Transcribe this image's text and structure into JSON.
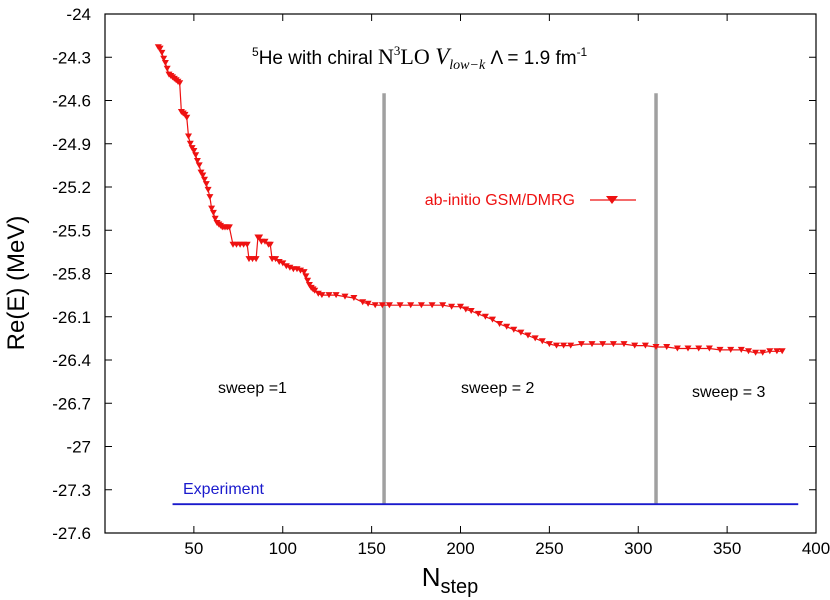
{
  "chart_data": {
    "type": "line",
    "title": {
      "superscript": "5",
      "lead": "He with chiral ",
      "n3lo_base": "N",
      "n3lo_sup": "3",
      "n3lo_tail": "LO ",
      "vlowk_base": "V",
      "vlowk_sub": "low−k",
      "lambda_text": " Λ = 1.9 fm",
      "lambda_sup": "-1"
    },
    "xlabel": {
      "base": "N",
      "sub": "step"
    },
    "ylabel": "Re(E)  (MeV)",
    "xlim": [
      0,
      400
    ],
    "ylim": [
      -27.6,
      -24.0
    ],
    "x_ticks": [
      50,
      100,
      150,
      200,
      250,
      300,
      350,
      400
    ],
    "y_ticks": [
      -24,
      -24.3,
      -24.6,
      -24.9,
      -25.2,
      -25.5,
      -25.8,
      -26.1,
      -26.4,
      -26.7,
      -27,
      -27.3,
      -27.6
    ],
    "y_tick_labels": [
      "-24",
      "-24.3",
      "-24.6",
      "-24.9",
      "-25.2",
      "-25.5",
      "-25.8",
      "-26.1",
      "-26.4",
      "-26.7",
      "-27",
      "-27.3",
      "-27.6"
    ],
    "grid": false,
    "series": [
      {
        "name": "ab-initio GSM/DMRG",
        "color": "#ee1111",
        "marker": "triangle-down",
        "points": [
          [
            30,
            -24.23
          ],
          [
            31,
            -24.24
          ],
          [
            32,
            -24.27
          ],
          [
            33,
            -24.31
          ],
          [
            34,
            -24.34
          ],
          [
            35,
            -24.38
          ],
          [
            36,
            -24.42
          ],
          [
            37,
            -24.43
          ],
          [
            38,
            -24.44
          ],
          [
            39,
            -24.45
          ],
          [
            40,
            -24.46
          ],
          [
            41,
            -24.47
          ],
          [
            42,
            -24.48
          ],
          [
            43,
            -24.68
          ],
          [
            44,
            -24.69
          ],
          [
            45,
            -24.7
          ],
          [
            46,
            -24.72
          ],
          [
            47,
            -24.85
          ],
          [
            48,
            -24.9
          ],
          [
            49,
            -24.93
          ],
          [
            50,
            -24.95
          ],
          [
            51,
            -24.98
          ],
          [
            52,
            -25.02
          ],
          [
            53,
            -25.05
          ],
          [
            54,
            -25.1
          ],
          [
            55,
            -25.12
          ],
          [
            56,
            -25.15
          ],
          [
            57,
            -25.18
          ],
          [
            58,
            -25.22
          ],
          [
            59,
            -25.27
          ],
          [
            60,
            -25.35
          ],
          [
            61,
            -25.38
          ],
          [
            62,
            -25.42
          ],
          [
            63,
            -25.45
          ],
          [
            64,
            -25.46
          ],
          [
            65,
            -25.47
          ],
          [
            66,
            -25.48
          ],
          [
            67,
            -25.48
          ],
          [
            68,
            -25.48
          ],
          [
            69,
            -25.48
          ],
          [
            70,
            -25.48
          ],
          [
            72,
            -25.6
          ],
          [
            74,
            -25.6
          ],
          [
            76,
            -25.6
          ],
          [
            78,
            -25.6
          ],
          [
            80,
            -25.6
          ],
          [
            81,
            -25.7
          ],
          [
            83,
            -25.7
          ],
          [
            85,
            -25.7
          ],
          [
            86,
            -25.55
          ],
          [
            87,
            -25.55
          ],
          [
            88,
            -25.58
          ],
          [
            90,
            -25.58
          ],
          [
            92,
            -25.6
          ],
          [
            93,
            -25.6
          ],
          [
            94,
            -25.7
          ],
          [
            96,
            -25.7
          ],
          [
            98,
            -25.72
          ],
          [
            100,
            -25.73
          ],
          [
            102,
            -25.75
          ],
          [
            104,
            -25.76
          ],
          [
            106,
            -25.77
          ],
          [
            108,
            -25.77
          ],
          [
            110,
            -25.78
          ],
          [
            112,
            -25.79
          ],
          [
            113,
            -25.82
          ],
          [
            114,
            -25.85
          ],
          [
            115,
            -25.88
          ],
          [
            116,
            -25.9
          ],
          [
            117,
            -25.91
          ],
          [
            118,
            -25.92
          ],
          [
            120,
            -25.94
          ],
          [
            122,
            -25.95
          ],
          [
            126,
            -25.95
          ],
          [
            130,
            -25.95
          ],
          [
            135,
            -25.96
          ],
          [
            140,
            -25.97
          ],
          [
            145,
            -26.0
          ],
          [
            148,
            -26.01
          ],
          [
            152,
            -26.02
          ],
          [
            156,
            -26.02
          ],
          [
            160,
            -26.02
          ],
          [
            166,
            -26.02
          ],
          [
            172,
            -26.02
          ],
          [
            178,
            -26.02
          ],
          [
            184,
            -26.02
          ],
          [
            190,
            -26.02
          ],
          [
            195,
            -26.03
          ],
          [
            200,
            -26.03
          ],
          [
            203,
            -26.05
          ],
          [
            206,
            -26.06
          ],
          [
            210,
            -26.08
          ],
          [
            214,
            -26.1
          ],
          [
            218,
            -26.12
          ],
          [
            222,
            -26.15
          ],
          [
            226,
            -26.17
          ],
          [
            230,
            -26.19
          ],
          [
            234,
            -26.21
          ],
          [
            238,
            -26.23
          ],
          [
            242,
            -26.25
          ],
          [
            246,
            -26.27
          ],
          [
            250,
            -26.29
          ],
          [
            254,
            -26.3
          ],
          [
            258,
            -26.3
          ],
          [
            262,
            -26.3
          ],
          [
            268,
            -26.29
          ],
          [
            274,
            -26.29
          ],
          [
            280,
            -26.29
          ],
          [
            286,
            -26.29
          ],
          [
            292,
            -26.29
          ],
          [
            298,
            -26.3
          ],
          [
            304,
            -26.3
          ],
          [
            310,
            -26.31
          ],
          [
            316,
            -26.31
          ],
          [
            322,
            -26.32
          ],
          [
            328,
            -26.32
          ],
          [
            334,
            -26.32
          ],
          [
            340,
            -26.32
          ],
          [
            346,
            -26.33
          ],
          [
            352,
            -26.33
          ],
          [
            358,
            -26.33
          ],
          [
            362,
            -26.34
          ],
          [
            366,
            -26.35
          ],
          [
            370,
            -26.35
          ],
          [
            374,
            -26.34
          ],
          [
            378,
            -26.34
          ],
          [
            381,
            -26.34
          ]
        ]
      }
    ],
    "reference_line": {
      "label": "Experiment",
      "color": "#1a1acc",
      "y": -27.4,
      "x_start": 38,
      "x_end": 390
    },
    "sweep_dividers": {
      "color": "#a0a0a0",
      "x_values": [
        157,
        310
      ],
      "y_top": -24.55,
      "y_bottom": -27.4
    },
    "legend": {
      "position": "upper-middle",
      "label": "ab-initio GSM/DMRG"
    },
    "annotations": [
      {
        "text": "sweep =1",
        "x": 70,
        "y": -26.65
      },
      {
        "text": "sweep = 2",
        "x": 230,
        "y": -26.65
      },
      {
        "text": "sweep = 3",
        "x": 365,
        "y": -26.68
      }
    ]
  }
}
